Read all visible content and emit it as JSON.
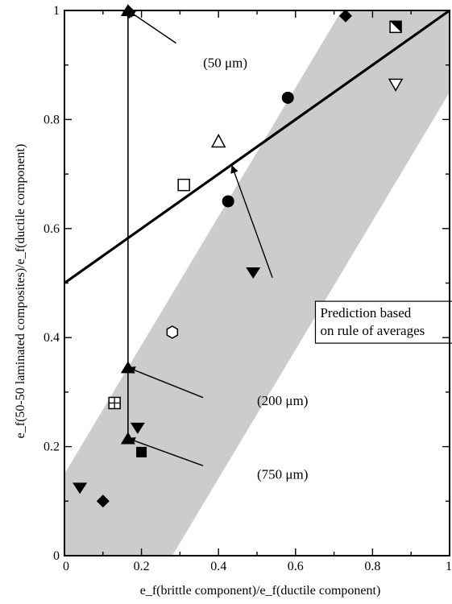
{
  "chart_data": {
    "type": "scatter",
    "xlabel": "e_f(brittle component)/e_f(ductile component)",
    "ylabel": "e_f(50-50 laminated composites)/e_f(ductile component)",
    "xlim": [
      0,
      1
    ],
    "ylim": [
      0,
      1
    ],
    "xticks": [
      "0",
      "0.2",
      "0.4",
      "0.6",
      "0.8",
      "1"
    ],
    "yticks": [
      "0",
      "0.2",
      "0.4",
      "0.6",
      "0.8",
      "1"
    ],
    "xtick_values": [
      0,
      0.2,
      0.4,
      0.6,
      0.8,
      1
    ],
    "ytick_values": [
      0,
      0.2,
      0.4,
      0.6,
      0.8,
      1
    ],
    "grid": false,
    "shaded_band": {
      "polygon": [
        [
          0,
          0
        ],
        [
          0,
          0.15
        ],
        [
          0.72,
          1
        ],
        [
          1,
          1
        ],
        [
          1,
          0.85
        ],
        [
          0.28,
          0
        ]
      ],
      "color": "#cccccc"
    },
    "prediction_line": {
      "x": [
        0,
        1
      ],
      "y": [
        0.5,
        1
      ],
      "color": "#000000"
    },
    "vertical_line": {
      "x": 0.165,
      "y": [
        0.215,
        1.0
      ]
    },
    "series": [
      {
        "marker": "diamond-filled",
        "points": [
          [
            0.1,
            0.1
          ],
          [
            0.168,
            0.997
          ],
          [
            0.73,
            0.99
          ]
        ]
      },
      {
        "marker": "triangle-down-filled",
        "points": [
          [
            0.04,
            0.125
          ],
          [
            0.19,
            0.235
          ],
          [
            0.49,
            0.52
          ]
        ]
      },
      {
        "marker": "triangle-up-filled",
        "points": [
          [
            0.165,
            1.0
          ],
          [
            0.165,
            0.345
          ],
          [
            0.165,
            0.215
          ]
        ]
      },
      {
        "marker": "circle-filled",
        "points": [
          [
            0.425,
            0.65
          ],
          [
            0.58,
            0.84
          ]
        ]
      },
      {
        "marker": "square-filled",
        "points": [
          [
            0.2,
            0.19
          ]
        ]
      },
      {
        "marker": "square-open",
        "points": [
          [
            0.31,
            0.68
          ]
        ]
      },
      {
        "marker": "triangle-up-open",
        "points": [
          [
            0.4,
            0.76
          ]
        ]
      },
      {
        "marker": "hexagon-open",
        "points": [
          [
            0.28,
            0.41
          ]
        ]
      },
      {
        "marker": "square-plus",
        "points": [
          [
            0.13,
            0.28
          ]
        ]
      },
      {
        "marker": "square-diagonal",
        "points": [
          [
            0.86,
            0.97
          ]
        ]
      },
      {
        "marker": "triangle-down-open",
        "points": [
          [
            0.86,
            0.865
          ]
        ]
      }
    ],
    "annotations": [
      {
        "text": "(50 μm)",
        "text_at": [
          0.36,
          0.905
        ],
        "arrow_from": [
          0.29,
          0.94
        ],
        "arrow_to": [
          0.165,
          1.0
        ]
      },
      {
        "text": "(200 μm)",
        "text_at": [
          0.5,
          0.285
        ],
        "arrow_from": [
          0.36,
          0.29
        ],
        "arrow_to": [
          0.165,
          0.345
        ]
      },
      {
        "text": "(750 μm)",
        "text_at": [
          0.5,
          0.15
        ],
        "arrow_from": [
          0.36,
          0.165
        ],
        "arrow_to": [
          0.165,
          0.215
        ]
      },
      {
        "text": "Prediction based",
        "text2": "on rule of averages",
        "text_at": [
          0.66,
          0.44
        ],
        "arrow_from": [
          0.54,
          0.51
        ],
        "arrow_to": [
          0.435,
          0.715
        ]
      }
    ]
  }
}
